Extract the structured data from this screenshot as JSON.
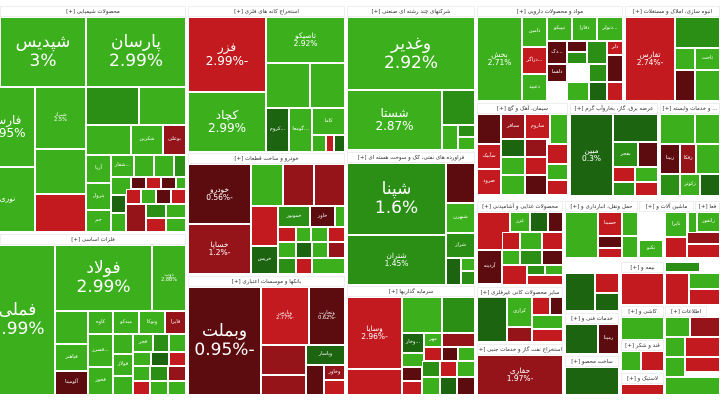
{
  "colors": {
    "up_strong": "#3cb01c",
    "up_mid": "#2a8f14",
    "up_weak": "#1c6410",
    "down_strong": "#c21a1e",
    "down_mid": "#94141a",
    "down_weak": "#5c0b0e"
  },
  "sectors": [
    {
      "title": "محصولات شیمیایی [+]",
      "tiles": [
        {
          "symbol": "شپدیس",
          "change": "3%"
        },
        {
          "symbol": "پارسان",
          "change": "2.99%"
        },
        {
          "symbol": "فارس",
          "change": "2.95%"
        },
        {
          "symbol": "شیراز",
          "change": "2.5%"
        },
        {
          "symbol": "نوری"
        },
        {
          "symbol": "شکربن"
        },
        {
          "symbol": "بوعلی"
        },
        {
          "symbol": "آریا"
        },
        {
          "symbol": "...شفار"
        },
        {
          "symbol": "پترول"
        },
        {
          "symbol": "جم"
        }
      ]
    },
    {
      "title": "فلزات اساسی [+]",
      "tiles": [
        {
          "symbol": "فملی",
          "change": "2.99%"
        },
        {
          "symbol": "فولاد",
          "change": "2.99%"
        },
        {
          "symbol": "ذوب",
          "change": "2.88%"
        },
        {
          "symbol": "کاوه"
        },
        {
          "symbol": "میدکو"
        },
        {
          "symbol": "ونوکا"
        },
        {
          "symbol": "فایرا"
        },
        {
          "symbol": "فباهنر"
        },
        {
          "symbol": "آلومینا"
        },
        {
          "symbol": "...فسرز"
        },
        {
          "symbol": "فخوز"
        },
        {
          "symbol": "فجر"
        },
        {
          "symbol": "فولاژ"
        }
      ]
    },
    {
      "title": "استخراج کانه های فلزی [+]",
      "tiles": [
        {
          "symbol": "فزر",
          "change": "-2.99%"
        },
        {
          "symbol": "تاصیکو",
          "change": "2.92%"
        },
        {
          "symbol": "کچاد",
          "change": "2.99%"
        },
        {
          "symbol": "...کروم"
        },
        {
          "symbol": "...گومعا"
        },
        {
          "symbol": "کاما"
        }
      ]
    },
    {
      "title": "خودرو و ساخت قطعات [+]",
      "tiles": [
        {
          "symbol": "خودرو",
          "change": "-0.56%"
        },
        {
          "symbol": "خساپا",
          "change": "-1.2%"
        },
        {
          "symbol": "خمونور"
        },
        {
          "symbol": "خاور"
        },
        {
          "symbol": "خریس"
        }
      ]
    },
    {
      "title": "بانکها و موسسات اعتباری [+]",
      "tiles": [
        {
          "symbol": "وبملت",
          "change": "-0.95%"
        },
        {
          "symbol": "وپارس",
          "change": "-2.77%"
        },
        {
          "symbol": "وتجارت",
          "change": "-0.62%"
        },
        {
          "symbol": "وپاسار"
        },
        {
          "symbol": "وخاور"
        }
      ]
    },
    {
      "title": "شرکتهای چند رشته ای صنعتی [+]",
      "tiles": [
        {
          "symbol": "وغدیر",
          "change": "2.92%"
        },
        {
          "symbol": "شستا",
          "change": "2.87%"
        }
      ]
    },
    {
      "title": "فراورده های نفتی، کک و سوخت هسته ای [+]",
      "tiles": [
        {
          "symbol": "شپنا",
          "change": "1.6%"
        },
        {
          "symbol": "شتران",
          "change": "1.45%"
        },
        {
          "symbol": "شبهرن"
        },
        {
          "symbol": "شراز"
        }
      ]
    },
    {
      "title": "سرمایه گذاریها [+]",
      "tiles": [
        {
          "symbol": "وسایا",
          "change": "-2.96%"
        },
        {
          "symbol": "مهر"
        },
        {
          "symbol": "...وخار"
        }
      ]
    },
    {
      "title": "مواد و محصولات دارویی [+]",
      "tiles": [
        {
          "symbol": "بخش",
          "change": "2.71%"
        },
        {
          "symbol": "دامین"
        },
        {
          "symbol": "تیپیکو"
        },
        {
          "symbol": "دفارا"
        },
        {
          "symbol": "...دتولر"
        },
        {
          "symbol": "...دزاگر"
        },
        {
          "symbol": "دلقما"
        },
        {
          "symbol": "دعبید"
        },
        {
          "symbol": "...دک"
        },
        {
          "symbol": "دلر"
        }
      ]
    },
    {
      "title": "انبوه سازی، املاک و مستغلات [+]",
      "tiles": [
        {
          "symbol": "تفارس",
          "change": "-2.74%"
        },
        {
          "symbol": "ثاخت"
        }
      ]
    },
    {
      "title": "سیمان، آهک و گچ [+]",
      "tiles": [
        {
          "symbol": "سباقر"
        },
        {
          "symbol": "ساروم"
        },
        {
          "symbol": "سآبیک"
        },
        {
          "symbol": "صرود"
        }
      ]
    },
    {
      "title": "عرضه برق، گاز، بخاروآب گرم [+]",
      "tiles": [
        {
          "symbol": "مبین",
          "change": "0.3%"
        },
        {
          "symbol": "بفجر"
        }
      ]
    },
    {
      "title": "... و خدمات وابسته [+]",
      "tiles": [
        {
          "symbol": "زبینا"
        },
        {
          "symbol": "زفکا"
        },
        {
          "symbol": "زکوثر"
        }
      ]
    },
    {
      "title": "محصولات غذایی و آشامیدنی [+]",
      "tiles": [
        {
          "symbol": "غزر"
        },
        {
          "symbol": "آردینه"
        }
      ]
    },
    {
      "title": "حمل ونقل، انبارداری و [+]",
      "tiles": [
        {
          "symbol": "حسینا"
        }
      ]
    },
    {
      "title": "ماشین آلات و [+]",
      "tiles": [
        {
          "symbol": "تایرا"
        },
        {
          "symbol": "تکنو"
        }
      ]
    },
    {
      "title": "فعا [+]",
      "tiles": [
        {
          "symbol": "رانفور"
        }
      ]
    },
    {
      "title": "بیمه و [+]",
      "tiles": []
    },
    {
      "title": "سایر محصولات کانی غیرفلزی [+]",
      "tiles": [
        {
          "symbol": "کرازی"
        }
      ]
    },
    {
      "title": "استخراج نفت گاز و خدمات جنبی [+]",
      "tiles": [
        {
          "symbol": "حفاری",
          "change": "-1.97%"
        }
      ]
    },
    {
      "title": "خدمات فنی و [+]",
      "tiles": [
        {
          "symbol": "رمپنا"
        }
      ]
    },
    {
      "title": "قند و شکر [+]",
      "tiles": []
    },
    {
      "title": "ساخت محصو [+]",
      "tiles": []
    },
    {
      "title": "لاستیک و [+]",
      "tiles": []
    },
    {
      "title": "اطلاعات [+]",
      "tiles": []
    },
    {
      "title": "کاشی و [+]",
      "tiles": []
    }
  ]
}
